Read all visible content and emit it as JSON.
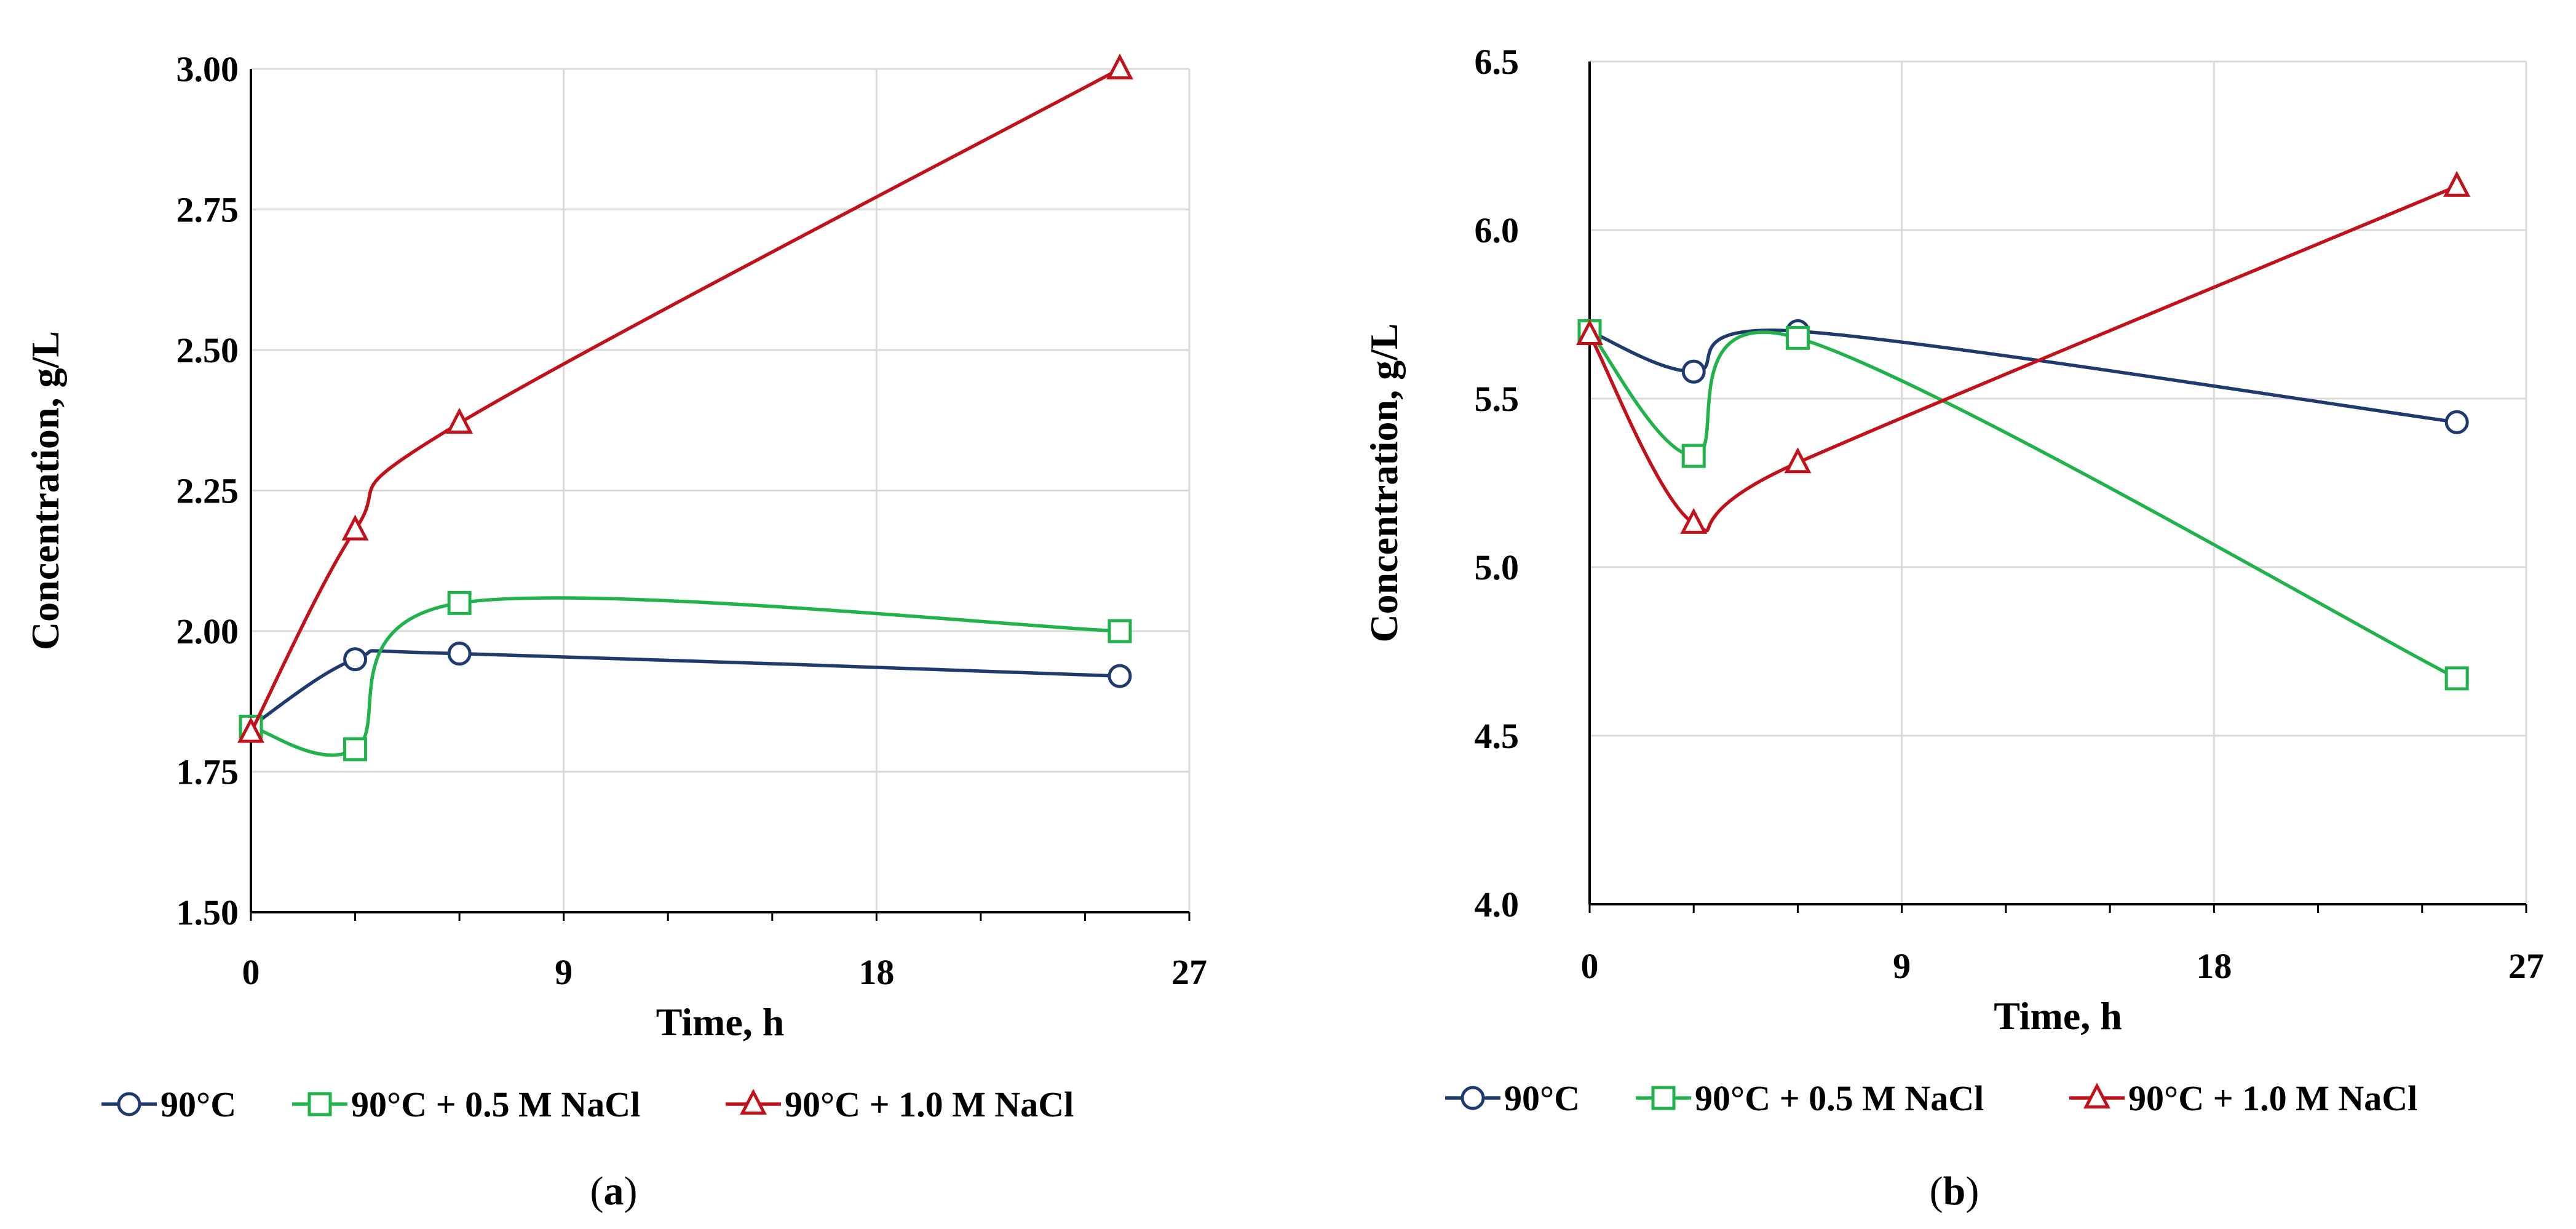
{
  "colors": {
    "series_a": "#1f3a6e",
    "series_b": "#21b24b",
    "series_c": "#c1121c",
    "grid": "#d9d9d9",
    "axis": "#000000"
  },
  "panel_labels": [
    "(a)",
    "(b)"
  ],
  "chart_data": [
    {
      "type": "line",
      "label": "(a)",
      "xlabel": "Time, h",
      "ylabel": "Concentration, g/L",
      "xlim": [
        0,
        27
      ],
      "ylim": [
        1.5,
        3.0
      ],
      "xticks": [
        0,
        9,
        18,
        27
      ],
      "yticks": [
        1.5,
        1.75,
        2.0,
        2.25,
        2.5,
        2.75,
        3.0
      ],
      "ytick_labels": [
        "1.50",
        "1.75",
        "2.00",
        "2.25",
        "2.50",
        "2.75",
        "3.00"
      ],
      "xtick_labels": [
        "0",
        "9",
        "18",
        "27"
      ],
      "grid": true,
      "legend_position": "bottom",
      "series": [
        {
          "name": "90°C",
          "marker": "circle",
          "smooth": true,
          "x": [
            0,
            3,
            6,
            25
          ],
          "y": [
            1.83,
            1.95,
            1.96,
            1.92
          ]
        },
        {
          "name": "90°C + 0.5 M NaCl",
          "marker": "square",
          "smooth": true,
          "x": [
            0,
            3,
            6,
            25
          ],
          "y": [
            1.83,
            1.79,
            2.05,
            2.0
          ]
        },
        {
          "name": "90°C + 1.0 M NaCl",
          "marker": "triangle",
          "smooth": true,
          "x": [
            0,
            3,
            6,
            25
          ],
          "y": [
            1.82,
            2.18,
            2.37,
            3.0
          ]
        }
      ]
    },
    {
      "type": "line",
      "label": "(b)",
      "xlabel": "Time, h",
      "ylabel": "Concentration, g/L",
      "xlim": [
        0,
        27
      ],
      "ylim": [
        4.0,
        6.5
      ],
      "xticks": [
        0,
        9,
        18,
        27
      ],
      "yticks": [
        4.0,
        4.5,
        5.0,
        5.5,
        6.0,
        6.5
      ],
      "ytick_labels": [
        "4.0",
        "4.5",
        "5.0",
        "5.5",
        "6.0",
        "6.5"
      ],
      "xtick_labels": [
        "0",
        "9",
        "18",
        "27"
      ],
      "grid": true,
      "legend_position": "bottom",
      "series": [
        {
          "name": "90°C",
          "marker": "circle",
          "smooth": true,
          "x": [
            0,
            3,
            6,
            25
          ],
          "y": [
            5.7,
            5.58,
            5.7,
            5.43
          ]
        },
        {
          "name": "90°C + 0.5 M NaCl",
          "marker": "square",
          "smooth": true,
          "x": [
            0,
            3,
            6,
            25
          ],
          "y": [
            5.7,
            5.33,
            5.68,
            4.67
          ]
        },
        {
          "name": "90°C + 1.0 M NaCl",
          "marker": "triangle",
          "smooth": true,
          "x": [
            0,
            3,
            6,
            25
          ],
          "y": [
            5.69,
            5.13,
            5.31,
            6.13
          ]
        }
      ]
    }
  ]
}
